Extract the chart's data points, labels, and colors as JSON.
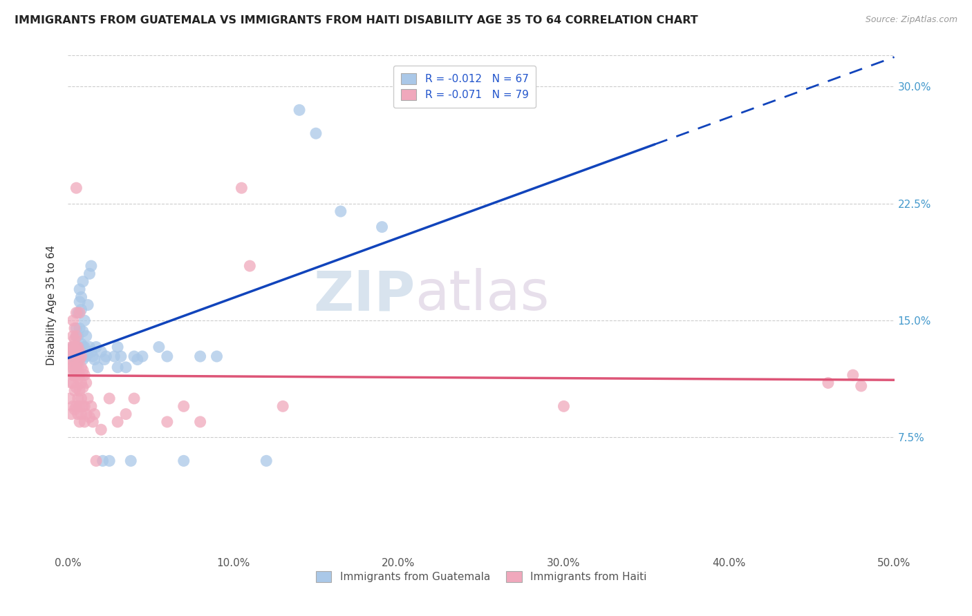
{
  "title": "IMMIGRANTS FROM GUATEMALA VS IMMIGRANTS FROM HAITI DISABILITY AGE 35 TO 64 CORRELATION CHART",
  "source": "Source: ZipAtlas.com",
  "ylabel": "Disability Age 35 to 64",
  "xlim": [
    0.0,
    0.5
  ],
  "ylim": [
    0.0,
    0.32
  ],
  "xticks": [
    0.0,
    0.1,
    0.2,
    0.3,
    0.4,
    0.5
  ],
  "xticklabels": [
    "0.0%",
    "10.0%",
    "20.0%",
    "30.0%",
    "40.0%",
    "50.0%"
  ],
  "yticks": [
    0.075,
    0.15,
    0.225,
    0.3
  ],
  "yticklabels": [
    "7.5%",
    "15.0%",
    "22.5%",
    "30.0%"
  ],
  "legend_blue_label": "R = -0.012   N = 67",
  "legend_pink_label": "R = -0.071   N = 79",
  "legend_bottom_blue": "Immigrants from Guatemala",
  "legend_bottom_pink": "Immigrants from Haiti",
  "blue_color": "#aac8e8",
  "pink_color": "#f0a8bc",
  "blue_line_color": "#1144bb",
  "pink_line_color": "#dd5577",
  "watermark_zip": "ZIP",
  "watermark_atlas": "atlas",
  "blue_scatter": [
    [
      0.002,
      0.13
    ],
    [
      0.003,
      0.127
    ],
    [
      0.003,
      0.133
    ],
    [
      0.004,
      0.125
    ],
    [
      0.004,
      0.128
    ],
    [
      0.004,
      0.13
    ],
    [
      0.005,
      0.12
    ],
    [
      0.005,
      0.127
    ],
    [
      0.005,
      0.133
    ],
    [
      0.005,
      0.14
    ],
    [
      0.005,
      0.145
    ],
    [
      0.006,
      0.125
    ],
    [
      0.006,
      0.13
    ],
    [
      0.006,
      0.133
    ],
    [
      0.006,
      0.14
    ],
    [
      0.006,
      0.155
    ],
    [
      0.007,
      0.127
    ],
    [
      0.007,
      0.145
    ],
    [
      0.007,
      0.162
    ],
    [
      0.007,
      0.17
    ],
    [
      0.008,
      0.13
    ],
    [
      0.008,
      0.135
    ],
    [
      0.008,
      0.157
    ],
    [
      0.008,
      0.165
    ],
    [
      0.009,
      0.125
    ],
    [
      0.009,
      0.133
    ],
    [
      0.009,
      0.143
    ],
    [
      0.009,
      0.175
    ],
    [
      0.01,
      0.128
    ],
    [
      0.01,
      0.133
    ],
    [
      0.01,
      0.15
    ],
    [
      0.011,
      0.127
    ],
    [
      0.011,
      0.14
    ],
    [
      0.012,
      0.13
    ],
    [
      0.012,
      0.16
    ],
    [
      0.013,
      0.133
    ],
    [
      0.013,
      0.18
    ],
    [
      0.014,
      0.13
    ],
    [
      0.014,
      0.185
    ],
    [
      0.015,
      0.127
    ],
    [
      0.016,
      0.125
    ],
    [
      0.017,
      0.133
    ],
    [
      0.018,
      0.12
    ],
    [
      0.02,
      0.13
    ],
    [
      0.021,
      0.06
    ],
    [
      0.022,
      0.125
    ],
    [
      0.023,
      0.127
    ],
    [
      0.025,
      0.06
    ],
    [
      0.028,
      0.127
    ],
    [
      0.03,
      0.133
    ],
    [
      0.03,
      0.12
    ],
    [
      0.032,
      0.127
    ],
    [
      0.035,
      0.12
    ],
    [
      0.038,
      0.06
    ],
    [
      0.04,
      0.127
    ],
    [
      0.042,
      0.125
    ],
    [
      0.045,
      0.127
    ],
    [
      0.055,
      0.133
    ],
    [
      0.06,
      0.127
    ],
    [
      0.07,
      0.06
    ],
    [
      0.08,
      0.127
    ],
    [
      0.09,
      0.127
    ],
    [
      0.12,
      0.06
    ],
    [
      0.14,
      0.285
    ],
    [
      0.15,
      0.27
    ],
    [
      0.165,
      0.22
    ],
    [
      0.19,
      0.21
    ]
  ],
  "pink_scatter": [
    [
      0.001,
      0.1
    ],
    [
      0.002,
      0.09
    ],
    [
      0.002,
      0.11
    ],
    [
      0.002,
      0.12
    ],
    [
      0.002,
      0.125
    ],
    [
      0.002,
      0.13
    ],
    [
      0.002,
      0.133
    ],
    [
      0.003,
      0.095
    ],
    [
      0.003,
      0.11
    ],
    [
      0.003,
      0.115
    ],
    [
      0.003,
      0.12
    ],
    [
      0.003,
      0.125
    ],
    [
      0.003,
      0.13
    ],
    [
      0.003,
      0.133
    ],
    [
      0.003,
      0.14
    ],
    [
      0.003,
      0.15
    ],
    [
      0.004,
      0.093
    ],
    [
      0.004,
      0.105
    ],
    [
      0.004,
      0.115
    ],
    [
      0.004,
      0.12
    ],
    [
      0.004,
      0.128
    ],
    [
      0.004,
      0.133
    ],
    [
      0.004,
      0.138
    ],
    [
      0.004,
      0.145
    ],
    [
      0.005,
      0.095
    ],
    [
      0.005,
      0.107
    ],
    [
      0.005,
      0.118
    ],
    [
      0.005,
      0.127
    ],
    [
      0.005,
      0.133
    ],
    [
      0.005,
      0.14
    ],
    [
      0.005,
      0.155
    ],
    [
      0.005,
      0.235
    ],
    [
      0.006,
      0.09
    ],
    [
      0.006,
      0.1
    ],
    [
      0.006,
      0.113
    ],
    [
      0.006,
      0.12
    ],
    [
      0.006,
      0.127
    ],
    [
      0.006,
      0.133
    ],
    [
      0.007,
      0.085
    ],
    [
      0.007,
      0.095
    ],
    [
      0.007,
      0.105
    ],
    [
      0.007,
      0.115
    ],
    [
      0.007,
      0.125
    ],
    [
      0.007,
      0.13
    ],
    [
      0.007,
      0.155
    ],
    [
      0.008,
      0.09
    ],
    [
      0.008,
      0.1
    ],
    [
      0.008,
      0.11
    ],
    [
      0.008,
      0.12
    ],
    [
      0.008,
      0.127
    ],
    [
      0.009,
      0.095
    ],
    [
      0.009,
      0.107
    ],
    [
      0.009,
      0.118
    ],
    [
      0.01,
      0.085
    ],
    [
      0.01,
      0.095
    ],
    [
      0.01,
      0.115
    ],
    [
      0.011,
      0.09
    ],
    [
      0.011,
      0.11
    ],
    [
      0.012,
      0.1
    ],
    [
      0.013,
      0.088
    ],
    [
      0.014,
      0.095
    ],
    [
      0.015,
      0.085
    ],
    [
      0.016,
      0.09
    ],
    [
      0.017,
      0.06
    ],
    [
      0.02,
      0.08
    ],
    [
      0.025,
      0.1
    ],
    [
      0.03,
      0.085
    ],
    [
      0.035,
      0.09
    ],
    [
      0.04,
      0.1
    ],
    [
      0.06,
      0.085
    ],
    [
      0.07,
      0.095
    ],
    [
      0.08,
      0.085
    ],
    [
      0.105,
      0.235
    ],
    [
      0.11,
      0.185
    ],
    [
      0.13,
      0.095
    ],
    [
      0.3,
      0.095
    ],
    [
      0.46,
      0.11
    ],
    [
      0.475,
      0.115
    ],
    [
      0.48,
      0.108
    ]
  ]
}
